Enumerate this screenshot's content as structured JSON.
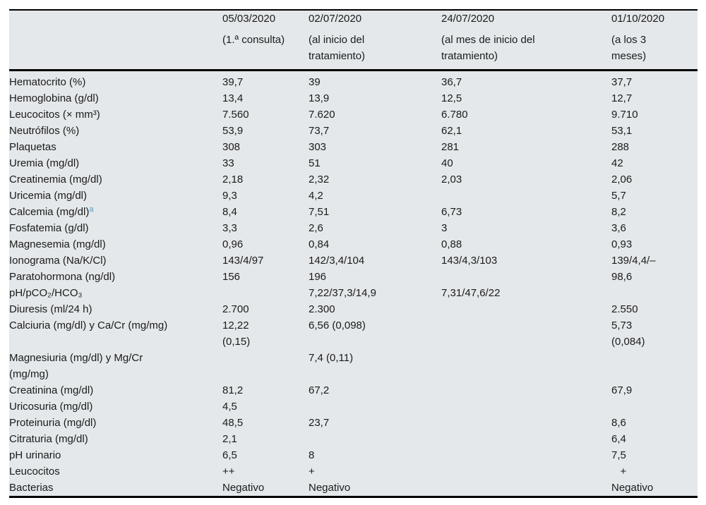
{
  "table": {
    "background_color": "#e4e8ea",
    "rule_color": "#000000",
    "footnote_marker_color": "#44a0d5",
    "columns": [
      {
        "date": "05/03/2020",
        "note": "(1.ª consulta)"
      },
      {
        "date": "02/07/2020",
        "note": "(al inicio del\ntratamiento)"
      },
      {
        "date": "24/07/2020",
        "note": "(al mes de inicio del\ntratamiento)"
      },
      {
        "date": "01/10/2020",
        "note": "(a los 3\nmeses)"
      }
    ],
    "rows": [
      {
        "label": "Hematocrito (%)",
        "values": [
          "39,7",
          "39",
          "36,7",
          "37,7"
        ]
      },
      {
        "label": "Hemoglobina (g/dl)",
        "values": [
          "13,4",
          "13,9",
          "12,5",
          "12,7"
        ]
      },
      {
        "label": "Leucocitos (× mm³)",
        "values": [
          "7.560",
          "7.620",
          "6.780",
          "9.710"
        ]
      },
      {
        "label": "Neutrófilos (%)",
        "values": [
          "53,9",
          "73,7",
          "62,1",
          "53,1"
        ]
      },
      {
        "label": "Plaquetas",
        "values": [
          "308",
          "303",
          "281",
          "288"
        ]
      },
      {
        "label": "Uremia (mg/dl)",
        "values": [
          "33",
          "51",
          "40",
          "42"
        ]
      },
      {
        "label": "Creatinemia (mg/dl)",
        "values": [
          "2,18",
          "2,32",
          "2,03",
          "2,06"
        ]
      },
      {
        "label": "Uricemia (mg/dl)",
        "values": [
          "9,3",
          "4,2",
          "",
          "5,7"
        ]
      },
      {
        "label": "Calcemia (mg/dl)",
        "sup": "a",
        "values": [
          "8,4",
          "7,51",
          "6,73",
          "8,2"
        ]
      },
      {
        "label": "Fosfatemia (g/dl)",
        "values": [
          "3,3",
          "2,6",
          "3",
          "3,6"
        ]
      },
      {
        "label": "Magnesemia (mg/dl)",
        "values": [
          "0,96",
          "0,84",
          "0,88",
          "0,93"
        ]
      },
      {
        "label": "Ionograma (Na/K/Cl)",
        "values": [
          "143/4/97",
          "142/3,4/104",
          "143/4,3/103",
          "139/4,4/–"
        ]
      },
      {
        "label": "Paratohormona (ng/dl)",
        "values": [
          "156",
          "196",
          "",
          "98,6"
        ]
      },
      {
        "label": "pH/pCO₂/HCO₃",
        "values": [
          "",
          "7,22/37,3/14,9",
          "7,31/47,6/22",
          ""
        ]
      },
      {
        "label": "Diuresis (ml/24 h)",
        "values": [
          "2.700",
          "2.300",
          "",
          "2.550"
        ]
      },
      {
        "label": "Calciuria (mg/dl) y Ca/Cr (mg/mg)",
        "values": [
          "12,22\n(0,15)",
          "6,56 (0,098)",
          "",
          "5,73\n(0,084)"
        ]
      },
      {
        "label": "Magnesiuria (mg/dl) y Mg/Cr\n(mg/mg)",
        "values": [
          "",
          "7,4 (0,11)",
          "",
          ""
        ]
      },
      {
        "label": "Creatinina (mg/dl)",
        "values": [
          "81,2",
          "67,2",
          "",
          "67,9"
        ]
      },
      {
        "label": "Uricosuria (mg/dl)",
        "values": [
          "4,5",
          "",
          "",
          ""
        ]
      },
      {
        "label": "Proteinuria (mg/dl)",
        "values": [
          "48,5",
          "23,7",
          "",
          "8,6"
        ]
      },
      {
        "label": "Citraturia (mg/dl)",
        "values": [
          "2,1",
          "",
          "",
          "6,4"
        ]
      },
      {
        "label": "pH urinario",
        "values": [
          "6,5",
          "8",
          "",
          "7,5"
        ]
      },
      {
        "label": "Leucocitos",
        "values": [
          "++",
          "+",
          "",
          "   +"
        ]
      },
      {
        "label": "Bacterias",
        "values": [
          "Negativo",
          "Negativo",
          "",
          "Negativo"
        ]
      }
    ]
  }
}
